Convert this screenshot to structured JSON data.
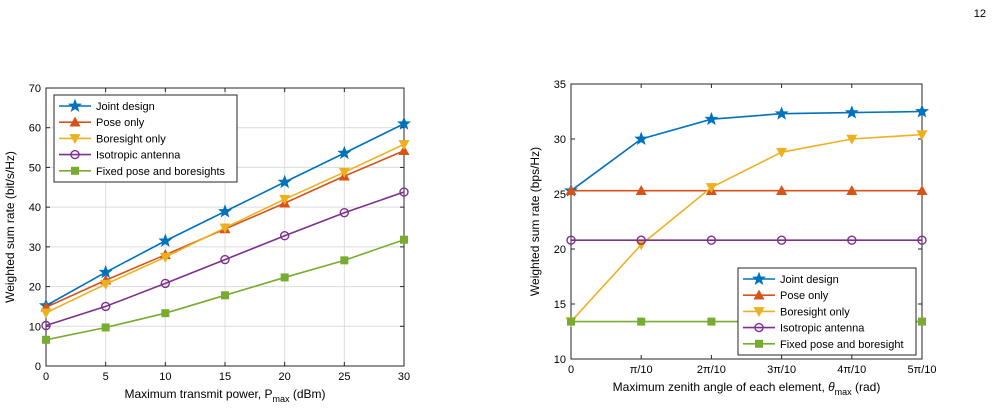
{
  "page_number": "12",
  "colors": {
    "joint": "#0072BD",
    "pose": "#D95319",
    "boresight": "#EDB120",
    "isotropic": "#7E2F8E",
    "fixed": "#77AC30"
  },
  "chart_data": [
    {
      "type": "line",
      "xlabel": "Maximum transmit power, P",
      "xlabel_sub": "max",
      "xlabel_unit": "(dBm)",
      "ylabel": "Weighted sum rate (bit/s/Hz)",
      "xlim": [
        0,
        30
      ],
      "ylim": [
        0,
        70
      ],
      "x": [
        0,
        5,
        10,
        15,
        20,
        25,
        30
      ],
      "x_ticks": [
        "0",
        "5",
        "10",
        "15",
        "20",
        "25",
        "30"
      ],
      "y_ticks": [
        "0",
        "10",
        "20",
        "30",
        "40",
        "50",
        "60",
        "70"
      ],
      "y_tick_values": [
        0,
        10,
        20,
        30,
        40,
        50,
        60,
        70
      ],
      "grid": true,
      "legend_position": "top-left",
      "series": [
        {
          "name": "Joint design",
          "marker": "star",
          "color_key": "joint",
          "values": [
            15.2,
            23.6,
            31.5,
            38.9,
            46.3,
            53.6,
            61.0
          ]
        },
        {
          "name": "Pose only",
          "marker": "triangle-up",
          "color_key": "pose",
          "values": [
            14.8,
            21.6,
            28.0,
            34.5,
            41.0,
            47.8,
            54.2
          ]
        },
        {
          "name": "Boresight only",
          "marker": "triangle-down",
          "color_key": "boresight",
          "values": [
            13.4,
            20.6,
            27.4,
            34.8,
            42.0,
            48.8,
            55.8
          ]
        },
        {
          "name": "Isotropic antenna",
          "marker": "circle",
          "color_key": "isotropic",
          "values": [
            10.2,
            15.0,
            20.8,
            26.8,
            32.8,
            38.6,
            43.8
          ]
        },
        {
          "name": "Fixed pose and boresights",
          "marker": "square",
          "color_key": "fixed",
          "values": [
            6.6,
            9.7,
            13.3,
            17.8,
            22.3,
            26.6,
            31.8
          ]
        }
      ]
    },
    {
      "type": "line",
      "xlabel": "Maximum zenith angle of each element,",
      "xlabel_symbol": "θ",
      "xlabel_sub": "max",
      "xlabel_unit": "(rad)",
      "ylabel": "Weighted sum rate (bps/Hz)",
      "xlim": [
        0,
        5
      ],
      "ylim": [
        10,
        35
      ],
      "x": [
        0,
        1,
        2,
        3,
        4,
        5
      ],
      "x_ticks": [
        "0",
        "π/10",
        "2π/10",
        "3π/10",
        "4π/10",
        "5π/10"
      ],
      "y_ticks": [
        "10",
        "15",
        "20",
        "25",
        "30",
        "35"
      ],
      "y_tick_values": [
        10,
        15,
        20,
        25,
        30,
        35
      ],
      "grid": false,
      "legend_position": "bottom-right",
      "series": [
        {
          "name": "Joint design",
          "marker": "star",
          "color_key": "joint",
          "values": [
            25.3,
            30.0,
            31.8,
            32.3,
            32.4,
            32.5
          ]
        },
        {
          "name": "Pose only",
          "marker": "triangle-up",
          "color_key": "pose",
          "values": [
            25.3,
            25.3,
            25.3,
            25.3,
            25.3,
            25.3
          ]
        },
        {
          "name": "Boresight only",
          "marker": "triangle-down",
          "color_key": "boresight",
          "values": [
            13.4,
            20.4,
            25.6,
            28.8,
            30.0,
            30.4
          ]
        },
        {
          "name": "Isotropic antenna",
          "marker": "circle",
          "color_key": "isotropic",
          "values": [
            20.8,
            20.8,
            20.8,
            20.8,
            20.8,
            20.8
          ]
        },
        {
          "name": "Fixed pose and boresight",
          "marker": "square",
          "color_key": "fixed",
          "values": [
            13.4,
            13.4,
            13.4,
            13.4,
            13.4,
            13.4
          ]
        }
      ]
    }
  ]
}
